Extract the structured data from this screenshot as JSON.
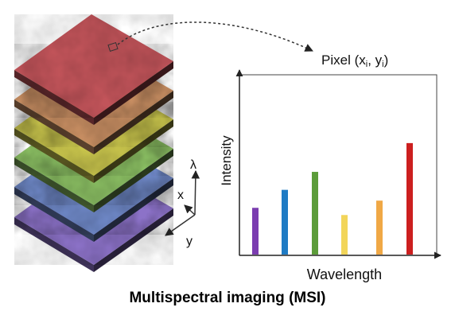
{
  "caption": "Multispectral imaging (MSI)",
  "pixel_label": "Pixel (xi, yi)",
  "axis_labels": {
    "lambda": "λ",
    "x": "x",
    "y": "y"
  },
  "layer_colors": [
    "#8c72c8",
    "#6d86c4",
    "#8bbf63",
    "#c8c44c",
    "#c98f63",
    "#c2545a"
  ],
  "bar_colors": [
    "#7b3db0",
    "#1f7bc4",
    "#5c9c3a",
    "#f2d55a",
    "#f0a845",
    "#cc1f1f"
  ],
  "chart_data": {
    "type": "bar",
    "xlabel": "Wavelength",
    "ylabel": "Intensity",
    "categories": [
      "",
      "",
      "",
      "",
      "",
      ""
    ],
    "values": [
      26,
      36,
      46,
      22,
      30,
      62
    ]
  }
}
